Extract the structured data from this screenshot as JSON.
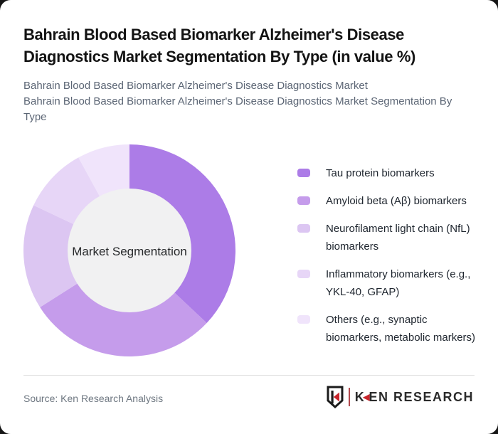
{
  "colors": {
    "card_background": "#ffffff",
    "page_background": "#161616",
    "title_text": "#131313",
    "subtitle_text": "#5c6675",
    "legend_text": "#202730",
    "source_text": "#6e7781",
    "divider": "#e1e1e1",
    "brand_red": "#c8252b",
    "donut_center_fill": "#f1f1f2"
  },
  "header": {
    "title": "Bahrain Blood Based Biomarker Alzheimer's Disease Diagnostics Market Segmentation By Type (in value %)",
    "subtitle_lines": [
      "Bahrain Blood Based Biomarker Alzheimer's Disease Diagnostics Market",
      "Bahrain Blood Based Biomarker Alzheimer's Disease Diagnostics Market Segmentation By Type"
    ]
  },
  "chart_data": {
    "type": "pie",
    "subtype": "donut",
    "title": "Bahrain Blood Based Biomarker Alzheimer's Disease Diagnostics Market Segmentation By Type (in value %)",
    "center_label": "Market Segmentation",
    "labels": [
      "Tau protein biomarkers",
      "Amyloid beta (Aβ) biomarkers",
      "Neurofilament light chain (NfL) biomarkers",
      "Inflammatory biomarkers (e.g., YKL-40, GFAP)",
      "Others (e.g., synaptic biomarkers, metabolic markers)"
    ],
    "values": [
      37,
      29,
      16,
      10,
      8
    ],
    "colors": [
      "#ac7ce7",
      "#c59ceb",
      "#dcc6f2",
      "#e7d6f7",
      "#f0e4fb"
    ],
    "start_angle_deg": 0,
    "direction": "clockwise",
    "inner_radius_ratio": 0.58,
    "legend_position": "right",
    "data_labels_shown": false
  },
  "legend": {
    "items": [
      {
        "label": "Tau protein biomarkers",
        "color": "#ac7ce7"
      },
      {
        "label": "Amyloid beta (Aβ) biomarkers",
        "color": "#c59ceb"
      },
      {
        "label": "Neurofilament light chain (NfL) biomarkers",
        "color": "#dcc6f2"
      },
      {
        "label": "Inflammatory biomarkers (e.g., YKL-40, GFAP)",
        "color": "#e7d6f7"
      },
      {
        "label": "Others (e.g., synaptic biomarkers, metabolic markers)",
        "color": "#f0e4fb"
      }
    ]
  },
  "footer": {
    "source": "Source: Ken Research Analysis",
    "logo": {
      "shield_icon": "ken-research-shield-icon",
      "text_k": "K",
      "text_rest": "EN RESEARCH"
    }
  }
}
